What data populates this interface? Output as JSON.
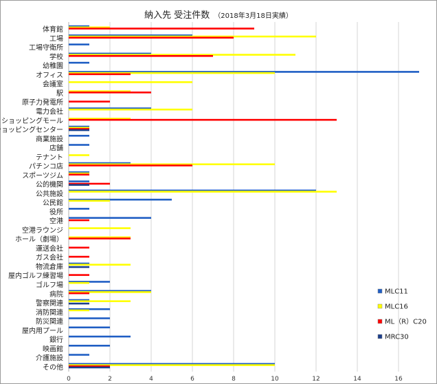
{
  "chart_data": {
    "type": "bar",
    "orientation": "horizontal",
    "title": "納入先 受注件数",
    "subtitle": "（2018年3月18日実績）",
    "xlabel": "",
    "ylabel": "",
    "xlim": [
      0,
      17
    ],
    "ticks": [
      "0",
      "2",
      "4",
      "6",
      "8",
      "10",
      "12",
      "14",
      "16"
    ],
    "grid": true,
    "legend_position": "right",
    "categories": [
      "体育館",
      "工場",
      "工場守衛所",
      "学校",
      "幼稚園",
      "オフィス",
      "会議室",
      "駅",
      "原子力発電所",
      "電力会社",
      "ショッピングモール",
      "ショッピングセンター",
      "商業施設",
      "店舗",
      "テナント",
      "パチンコ店",
      "スポーツジム",
      "公的機関",
      "公共施設",
      "公民館",
      "役所",
      "空港",
      "空港ラウンジ",
      "ホール（劇場）",
      "運送会社",
      "ガス会社",
      "物流倉庫",
      "屋内ゴルフ練習場",
      "ゴルフ場",
      "病院",
      "警察関連",
      "消防関連",
      "防災関連",
      "屋内用プール",
      "銀行",
      "映画館",
      "介護施設",
      "その他"
    ],
    "series": [
      {
        "name": "MLC11",
        "color": "#1f5ec4",
        "values": [
          1,
          6,
          1,
          4,
          1,
          17,
          0,
          0,
          0,
          4,
          0,
          1,
          1,
          1,
          0,
          3,
          1,
          1,
          12,
          5,
          1,
          4,
          0,
          0,
          0,
          0,
          1,
          0,
          2,
          4,
          1,
          2,
          2,
          2,
          3,
          2,
          1,
          10
        ]
      },
      {
        "name": "MLC16",
        "color": "#ffff00",
        "values": [
          2,
          12,
          0,
          11,
          0,
          10,
          6,
          3,
          0,
          6,
          3,
          1,
          0,
          0,
          1,
          10,
          1,
          0,
          13,
          2,
          0,
          0,
          3,
          3,
          0,
          0,
          3,
          0,
          1,
          4,
          3,
          1,
          0,
          0,
          0,
          0,
          0,
          10
        ]
      },
      {
        "name": "ML（R）C20",
        "color": "#ff0000",
        "values": [
          9,
          8,
          0,
          7,
          0,
          3,
          0,
          4,
          2,
          0,
          13,
          1,
          0,
          0,
          0,
          6,
          1,
          2,
          0,
          0,
          0,
          1,
          0,
          3,
          1,
          1,
          0,
          1,
          0,
          1,
          0,
          0,
          0,
          0,
          0,
          0,
          0,
          2
        ]
      },
      {
        "name": "MRC30",
        "color": "#1c3f8a",
        "values": [
          0,
          0,
          0,
          0,
          0,
          0,
          0,
          0,
          0,
          0,
          0,
          1,
          0,
          0,
          0,
          0,
          0,
          1,
          0,
          0,
          0,
          0,
          0,
          0,
          0,
          0,
          1,
          0,
          0,
          0,
          1,
          0,
          0,
          0,
          0,
          0,
          0,
          2
        ]
      }
    ]
  }
}
